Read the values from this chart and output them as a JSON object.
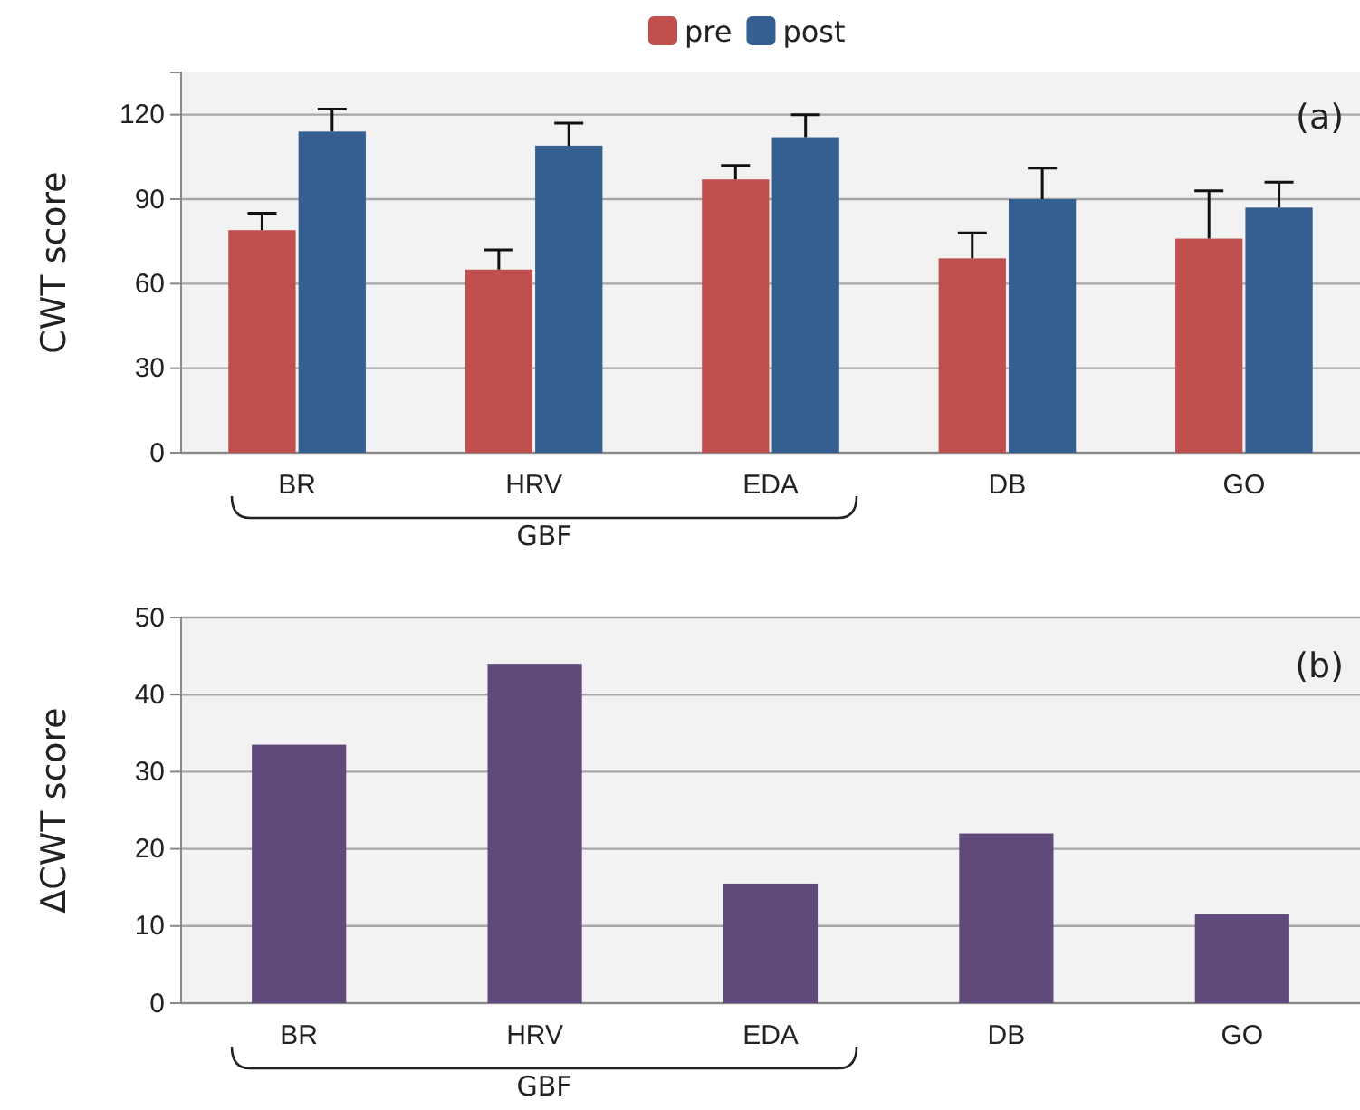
{
  "chart_data": [
    {
      "type": "bar",
      "ylabel": "CWT score",
      "categories": [
        "BR",
        "HRV",
        "EDA",
        "DB",
        "GO"
      ],
      "ylim": [
        0,
        135
      ],
      "yticks": [
        0,
        30,
        60,
        90,
        120
      ],
      "grid": "y",
      "legend": "top",
      "annotations": [
        "(a)",
        "GBF"
      ],
      "series": [
        {
          "name": "pre",
          "color": "#c0504d",
          "values": [
            79,
            65,
            97,
            69,
            76
          ],
          "errors": [
            [
              79,
              85
            ],
            [
              65,
              72
            ],
            [
              97,
              102
            ],
            [
              69,
              78
            ],
            [
              76,
              93
            ]
          ]
        },
        {
          "name": "post",
          "color": "#365f91",
          "values": [
            114,
            109,
            112,
            90,
            87
          ],
          "errors": [
            [
              114,
              122
            ],
            [
              109,
              117
            ],
            [
              112,
              120
            ],
            [
              90,
              101
            ],
            [
              87,
              96
            ]
          ]
        }
      ]
    },
    {
      "type": "bar",
      "ylabel": "ΔCWT score",
      "categories": [
        "BR",
        "HRV",
        "EDA",
        "DB",
        "GO"
      ],
      "ylim": [
        0,
        50
      ],
      "yticks": [
        0,
        10,
        20,
        30,
        40,
        50
      ],
      "grid": "y",
      "annotations": [
        "(b)",
        "GBF"
      ],
      "series": [
        {
          "color": "#604a7b",
          "values": [
            33.5,
            44,
            15.5,
            22,
            11.5
          ]
        }
      ]
    }
  ]
}
